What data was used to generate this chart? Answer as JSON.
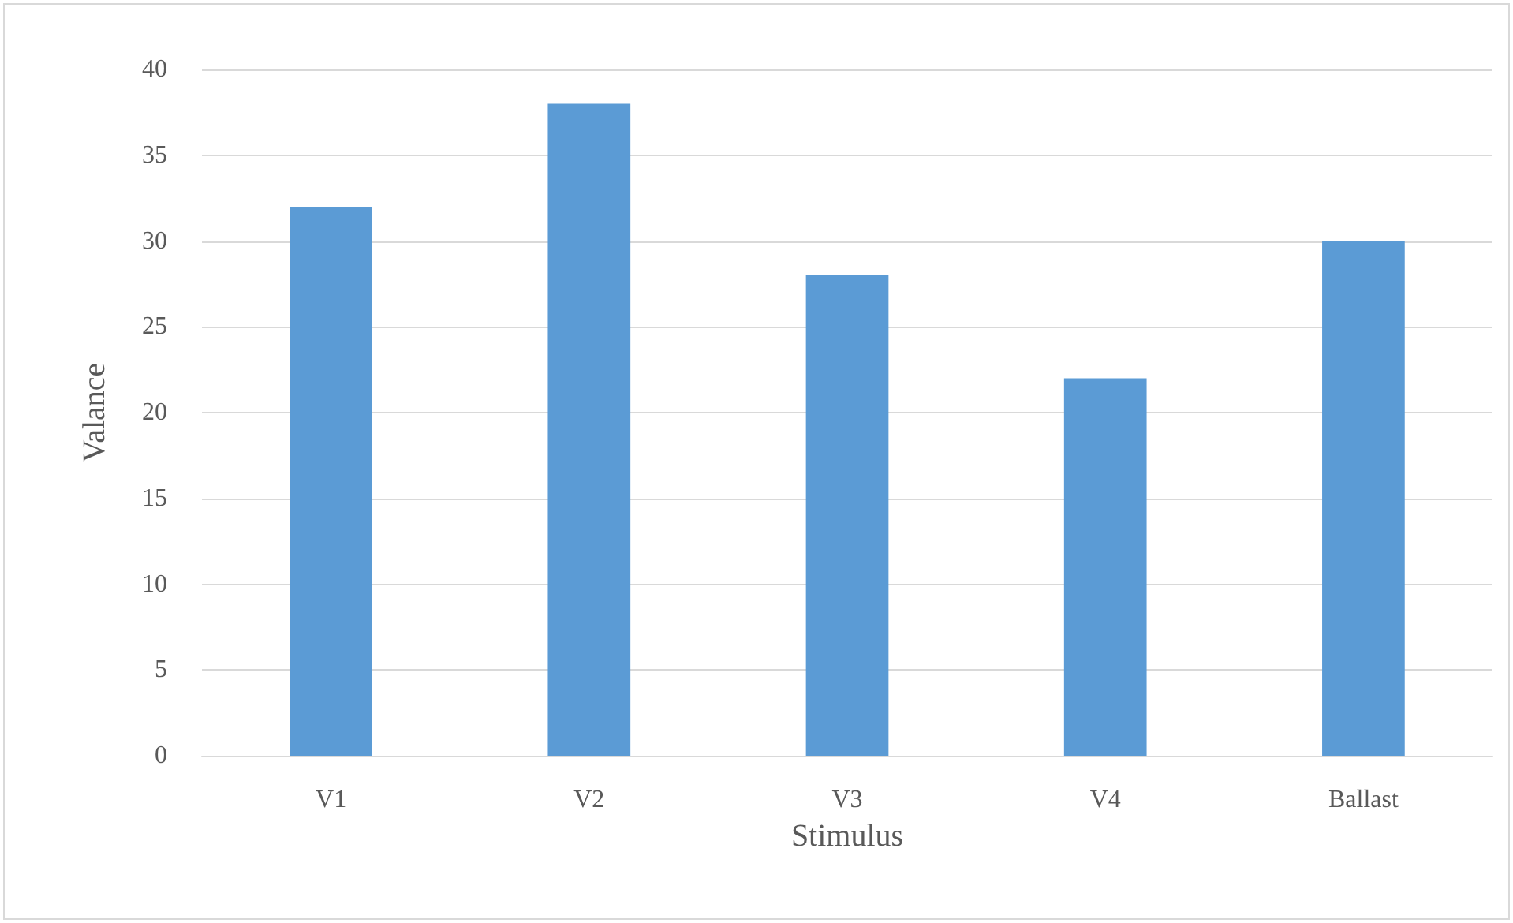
{
  "chart_data": {
    "type": "bar",
    "categories": [
      "V1",
      "V2",
      "V3",
      "V4",
      "Ballast"
    ],
    "values": [
      32,
      38,
      28,
      22,
      30
    ],
    "color": "#5b9bd5",
    "xlabel": "Stimulus",
    "ylabel": "Valance",
    "ylim": [
      0,
      40
    ],
    "yticks": [
      0,
      5,
      10,
      15,
      20,
      25,
      30,
      35,
      40
    ],
    "grid": "y"
  }
}
